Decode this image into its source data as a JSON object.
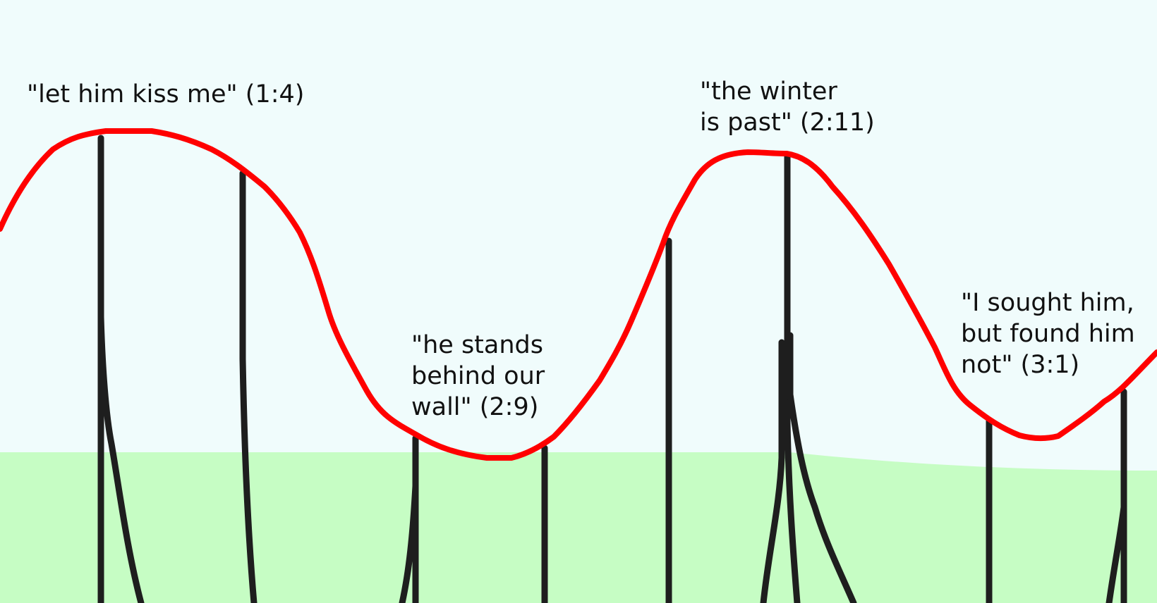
{
  "colors": {
    "sky": "#f0fcfc",
    "ground": "#c6fdc4",
    "track": "#ff0000",
    "supports": "#1e1e1e",
    "text": "#111111"
  },
  "annotations": [
    {
      "lines": [
        "\"let him kiss me\" (1:4)"
      ]
    },
    {
      "lines": [
        "\"he stands",
        "behind our",
        "wall\" (2:9)"
      ]
    },
    {
      "lines": [
        "\"the winter",
        "is past\" (2:11)"
      ]
    },
    {
      "lines": [
        "\"I sought him,",
        "but found him",
        "not\" (3:1)"
      ]
    }
  ]
}
